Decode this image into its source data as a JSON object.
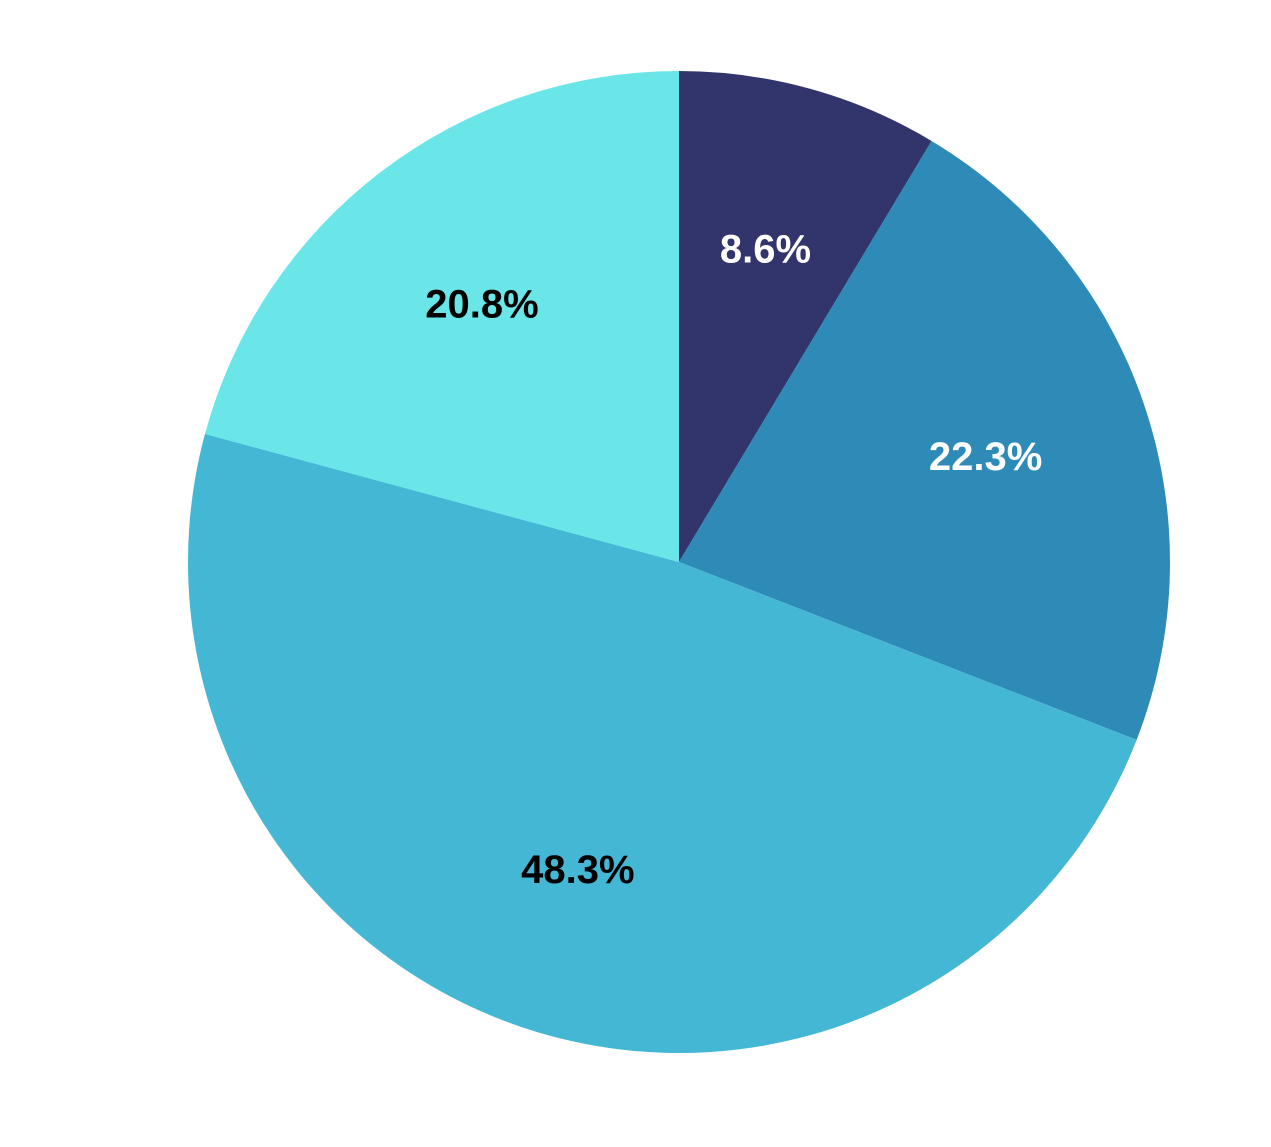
{
  "chart_data": {
    "type": "pie",
    "start_angle": "12 o'clock",
    "direction": "clockwise",
    "slices": [
      {
        "value": 8.6,
        "label": "8.6%",
        "color": "#32346c",
        "label_color": "#ffffff"
      },
      {
        "value": 22.3,
        "label": "22.3%",
        "color": "#2e8bb8",
        "label_color": "#ffffff"
      },
      {
        "value": 48.3,
        "label": "48.3%",
        "color": "#43b7d4",
        "label_color": "#000000"
      },
      {
        "value": 20.8,
        "label": "20.8%",
        "color": "#6ae6e8",
        "label_color": "#000000"
      }
    ]
  }
}
